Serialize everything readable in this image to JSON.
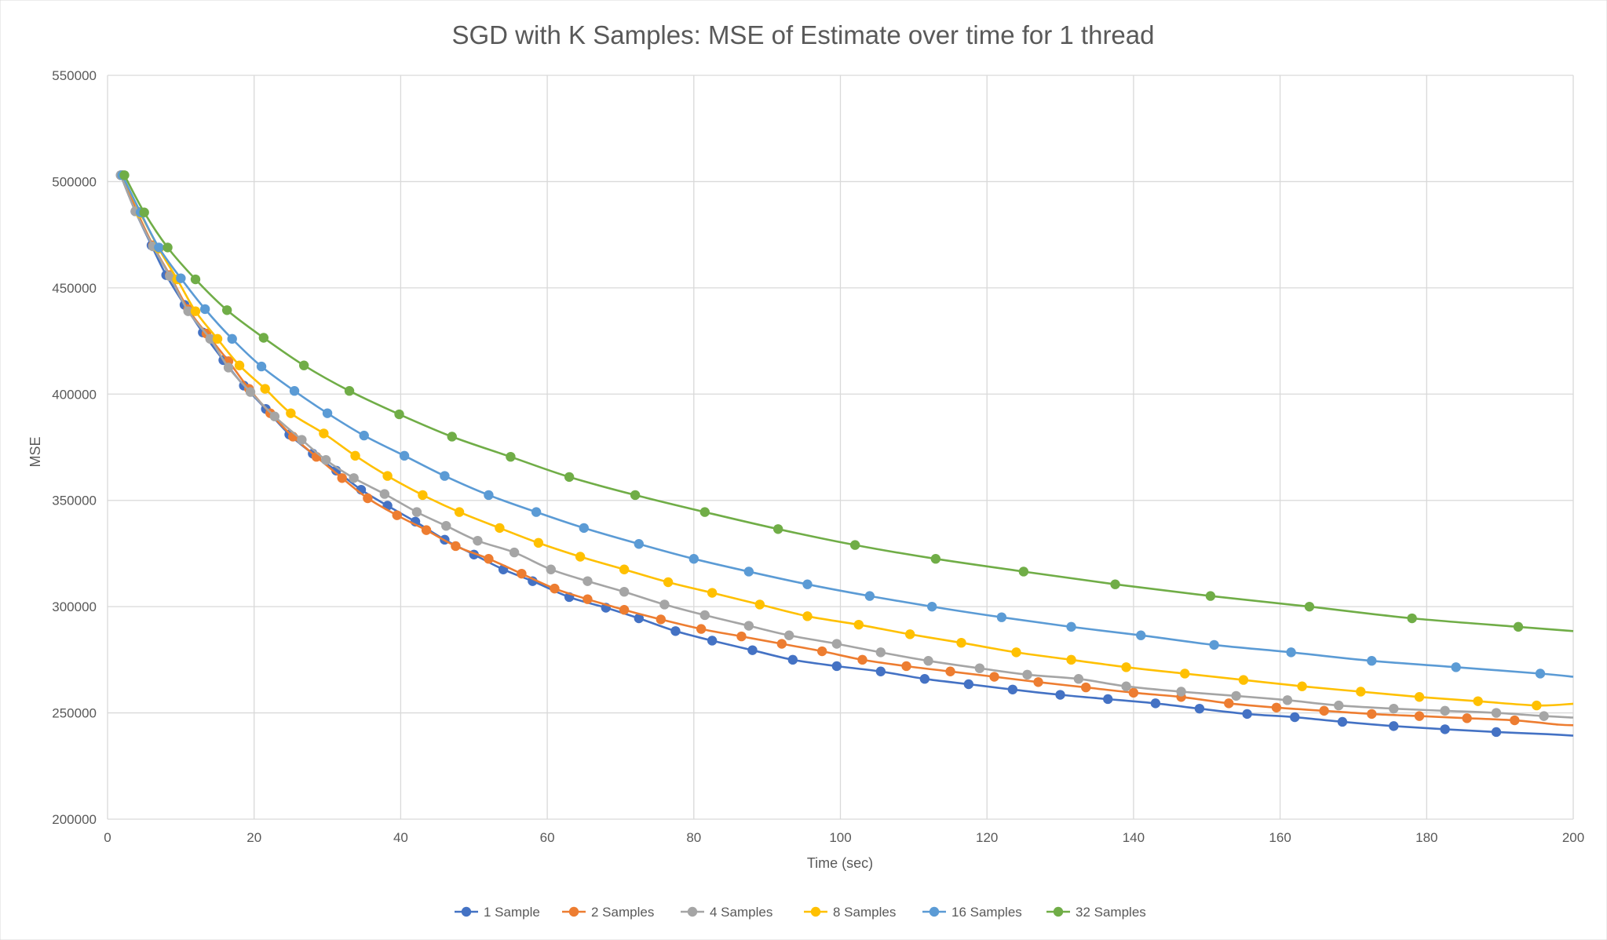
{
  "chart_data": {
    "type": "line",
    "title": "SGD with K Samples: MSE of Estimate over time for 1 thread",
    "xlabel": "Time (sec)",
    "ylabel": "MSE",
    "xlim": [
      0,
      200
    ],
    "ylim": [
      200000,
      550000
    ],
    "xticks": [
      0,
      20,
      40,
      60,
      80,
      100,
      120,
      140,
      160,
      180,
      200
    ],
    "yticks": [
      200000,
      250000,
      300000,
      350000,
      400000,
      450000,
      500000,
      550000
    ],
    "grid": true,
    "legend_position": "bottom",
    "series": [
      {
        "name": "1 Sample",
        "color": "#4472c4",
        "points": [
          [
            1.8,
            503000
          ],
          [
            3.8,
            486000
          ],
          [
            6,
            470000
          ],
          [
            8,
            456000
          ],
          [
            10.5,
            442000
          ],
          [
            13,
            429000
          ],
          [
            15.8,
            416000
          ],
          [
            18.6,
            404000
          ],
          [
            21.6,
            393000
          ],
          [
            24.8,
            381000
          ],
          [
            28,
            372000
          ],
          [
            31.2,
            364000
          ],
          [
            34.6,
            355000
          ],
          [
            38.2,
            347500
          ],
          [
            42,
            340000
          ],
          [
            46,
            331500
          ],
          [
            50,
            324500
          ],
          [
            54,
            317500
          ],
          [
            58,
            312000
          ],
          [
            63,
            304500
          ],
          [
            68,
            299500
          ],
          [
            72.5,
            294500
          ],
          [
            77.5,
            288500
          ],
          [
            82.5,
            284000
          ],
          [
            88,
            279500
          ],
          [
            93.5,
            275000
          ],
          [
            99.5,
            272000
          ],
          [
            105.5,
            269500
          ],
          [
            111.5,
            266000
          ],
          [
            117.5,
            263500
          ],
          [
            123.5,
            261000
          ],
          [
            130,
            258500
          ],
          [
            136.5,
            256500
          ],
          [
            143,
            254500
          ],
          [
            149,
            252000
          ],
          [
            155.5,
            249500
          ],
          [
            162,
            248000
          ],
          [
            168.5,
            245800
          ],
          [
            175.5,
            243800
          ],
          [
            182.5,
            242300
          ],
          [
            189.5,
            241000
          ],
          [
            196.5,
            240000
          ],
          [
            200,
            239300
          ]
        ],
        "marker_count": 41
      },
      {
        "name": "2 Samples",
        "color": "#ed7d31",
        "points": [
          [
            2,
            503000
          ],
          [
            4,
            486000
          ],
          [
            6.2,
            470000
          ],
          [
            8.5,
            456000
          ],
          [
            11,
            440000
          ],
          [
            13.5,
            428500
          ],
          [
            16.5,
            415500
          ],
          [
            19.3,
            402500
          ],
          [
            22.2,
            391000
          ],
          [
            25.3,
            380000
          ],
          [
            28.5,
            370500
          ],
          [
            32,
            360500
          ],
          [
            35.5,
            351000
          ],
          [
            39.5,
            343000
          ],
          [
            43.5,
            336000
          ],
          [
            47.5,
            328500
          ],
          [
            52,
            322500
          ],
          [
            56.5,
            315500
          ],
          [
            61,
            308500
          ],
          [
            65.5,
            303500
          ],
          [
            70.5,
            298500
          ],
          [
            75.5,
            294000
          ],
          [
            81,
            289500
          ],
          [
            86.5,
            286000
          ],
          [
            92,
            282500
          ],
          [
            97.5,
            279000
          ],
          [
            103,
            275000
          ],
          [
            109,
            272000
          ],
          [
            115,
            269500
          ],
          [
            121,
            267000
          ],
          [
            127,
            264500
          ],
          [
            133.5,
            262000
          ],
          [
            140,
            259500
          ],
          [
            146.5,
            257500
          ],
          [
            153,
            254500
          ],
          [
            159.5,
            252500
          ],
          [
            166,
            251000
          ],
          [
            172.5,
            249500
          ],
          [
            179,
            248500
          ],
          [
            185.5,
            247500
          ],
          [
            192,
            246500
          ],
          [
            198,
            244500
          ],
          [
            200,
            244200
          ]
        ],
        "marker_count": 41
      },
      {
        "name": "4 Samples",
        "color": "#a5a5a5",
        "points": [
          [
            1.8,
            503000
          ],
          [
            3.8,
            486000
          ],
          [
            6.2,
            469500
          ],
          [
            8.5,
            455500
          ],
          [
            11,
            439000
          ],
          [
            14,
            426000
          ],
          [
            16.5,
            412500
          ],
          [
            19.5,
            401000
          ],
          [
            22.8,
            389500
          ],
          [
            26.5,
            378500
          ],
          [
            29.8,
            369000
          ],
          [
            33.6,
            360500
          ],
          [
            37.8,
            353000
          ],
          [
            42.2,
            344500
          ],
          [
            46.2,
            338000
          ],
          [
            50.5,
            331000
          ],
          [
            55.5,
            325500
          ],
          [
            60.5,
            317500
          ],
          [
            65.5,
            312000
          ],
          [
            70.5,
            307000
          ],
          [
            76,
            301000
          ],
          [
            81.5,
            296000
          ],
          [
            87.5,
            291000
          ],
          [
            93,
            286500
          ],
          [
            99.5,
            282500
          ],
          [
            105.5,
            278500
          ],
          [
            112,
            274500
          ],
          [
            119,
            271000
          ],
          [
            125.5,
            268000
          ],
          [
            132.5,
            266000
          ],
          [
            139,
            262500
          ],
          [
            146.5,
            260000
          ],
          [
            154,
            258000
          ],
          [
            161,
            256000
          ],
          [
            168,
            253500
          ],
          [
            175.5,
            252000
          ],
          [
            182.5,
            251000
          ],
          [
            189.5,
            250000
          ],
          [
            196,
            248500
          ],
          [
            200,
            247800
          ]
        ],
        "marker_count": 39
      },
      {
        "name": "8 Samples",
        "color": "#ffc000",
        "points": [
          [
            2,
            503000
          ],
          [
            4.5,
            485000
          ],
          [
            7,
            468500
          ],
          [
            9.5,
            454000
          ],
          [
            12,
            439000
          ],
          [
            15,
            426000
          ],
          [
            18,
            413500
          ],
          [
            21.5,
            402500
          ],
          [
            25,
            391000
          ],
          [
            29.5,
            381500
          ],
          [
            33.8,
            371000
          ],
          [
            38.2,
            361500
          ],
          [
            43,
            352500
          ],
          [
            48,
            344500
          ],
          [
            53.5,
            337000
          ],
          [
            58.8,
            330000
          ],
          [
            64.5,
            323500
          ],
          [
            70.5,
            317500
          ],
          [
            76.5,
            311500
          ],
          [
            82.5,
            306500
          ],
          [
            89,
            301000
          ],
          [
            95.5,
            295500
          ],
          [
            102.5,
            291500
          ],
          [
            109.5,
            287000
          ],
          [
            116.5,
            283000
          ],
          [
            124,
            278500
          ],
          [
            131.5,
            275000
          ],
          [
            139,
            271500
          ],
          [
            147,
            268500
          ],
          [
            155,
            265500
          ],
          [
            163,
            262500
          ],
          [
            171,
            260000
          ],
          [
            179,
            257500
          ],
          [
            187,
            255500
          ],
          [
            195,
            253500
          ],
          [
            200,
            254300
          ]
        ],
        "marker_count": 35
      },
      {
        "name": "16 Samples",
        "color": "#5b9bd5",
        "points": [
          [
            2,
            503000
          ],
          [
            4.5,
            485500
          ],
          [
            7,
            469000
          ],
          [
            10,
            454500
          ],
          [
            13.3,
            440000
          ],
          [
            17,
            426000
          ],
          [
            21,
            413000
          ],
          [
            25.5,
            401500
          ],
          [
            30,
            391000
          ],
          [
            35,
            380500
          ],
          [
            40.5,
            371000
          ],
          [
            46,
            361500
          ],
          [
            52,
            352500
          ],
          [
            58.5,
            344500
          ],
          [
            65,
            337000
          ],
          [
            72.5,
            329500
          ],
          [
            80,
            322500
          ],
          [
            87.5,
            316500
          ],
          [
            95.5,
            310500
          ],
          [
            104,
            305000
          ],
          [
            112.5,
            300000
          ],
          [
            122,
            295000
          ],
          [
            131.5,
            290500
          ],
          [
            141,
            286500
          ],
          [
            151,
            282000
          ],
          [
            161.5,
            278500
          ],
          [
            172.5,
            274500
          ],
          [
            184,
            271500
          ],
          [
            195.5,
            268500
          ],
          [
            200,
            267000
          ]
        ],
        "marker_count": 29
      },
      {
        "name": "32 Samples",
        "color": "#70ad47",
        "points": [
          [
            2.3,
            503000
          ],
          [
            5,
            485500
          ],
          [
            8.2,
            469000
          ],
          [
            12,
            454000
          ],
          [
            16.3,
            439500
          ],
          [
            21.3,
            426500
          ],
          [
            26.8,
            413500
          ],
          [
            33,
            401500
          ],
          [
            39.8,
            390500
          ],
          [
            47,
            380000
          ],
          [
            55,
            370500
          ],
          [
            63,
            361000
          ],
          [
            72,
            352500
          ],
          [
            81.5,
            344500
          ],
          [
            91.5,
            336500
          ],
          [
            102,
            329000
          ],
          [
            113,
            322500
          ],
          [
            125,
            316500
          ],
          [
            137.5,
            310500
          ],
          [
            150.5,
            305000
          ],
          [
            164,
            300000
          ],
          [
            178,
            294500
          ],
          [
            192.5,
            290500
          ],
          [
            200,
            288500
          ]
        ],
        "marker_count": 23
      }
    ]
  }
}
